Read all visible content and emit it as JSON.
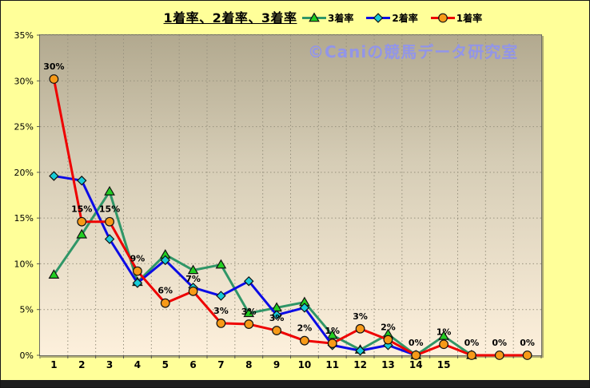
{
  "chart_data": {
    "type": "line",
    "title": "1着率、2着率、3着率",
    "watermark": "©Caniの競馬データ研究室",
    "x_categories": [
      "1",
      "2",
      "3",
      "4",
      "5",
      "6",
      "7",
      "8",
      "9",
      "10",
      "11",
      "12",
      "13",
      "14",
      "15",
      "",
      "",
      ""
    ],
    "y_ticks": [
      "0%",
      "5%",
      "10%",
      "15%",
      "20%",
      "25%",
      "30%",
      "35%"
    ],
    "ylim": [
      0,
      35
    ],
    "grid": true,
    "legend_position": "top",
    "series": [
      {
        "name": "3着率",
        "line_color": "#2f9667",
        "marker": "triangle",
        "marker_color": "#22cf22",
        "values": [
          8.8,
          13.2,
          17.9,
          8.0,
          11.0,
          9.3,
          9.9,
          4.6,
          5.2,
          5.8,
          2.2,
          0.6,
          2.3,
          0,
          2.1,
          0
        ]
      },
      {
        "name": "2着率",
        "line_color": "#0b0be6",
        "marker": "diamond",
        "marker_color": "#17ccd8",
        "values": [
          19.6,
          19.1,
          12.7,
          7.9,
          10.4,
          7.4,
          6.5,
          8.1,
          4.4,
          5.2,
          1.1,
          0.5,
          1.1,
          0
        ]
      },
      {
        "name": "1着率",
        "line_color": "#ee0000",
        "marker": "circle",
        "marker_color": "#f79a18",
        "values": [
          30.2,
          14.6,
          14.6,
          9.2,
          5.7,
          7.0,
          3.5,
          3.4,
          2.7,
          1.6,
          1.3,
          2.9,
          1.7,
          0,
          1.2,
          0,
          0,
          0
        ],
        "data_labels": [
          "30%",
          "15%",
          "15%",
          "9%",
          "6%",
          "7%",
          "3%",
          "3%",
          "3%",
          "2%",
          "1%",
          "3%",
          "2%",
          "0%",
          "1%",
          "0%",
          "0%",
          "0%"
        ]
      }
    ],
    "colors": {
      "background": "#ffff99",
      "plot_gradient_top": "#b2a98f",
      "plot_gradient_bottom": "#fdf0dc",
      "gridline": "#97917e",
      "axis": "#555550",
      "watermark": "#9295e8"
    }
  }
}
